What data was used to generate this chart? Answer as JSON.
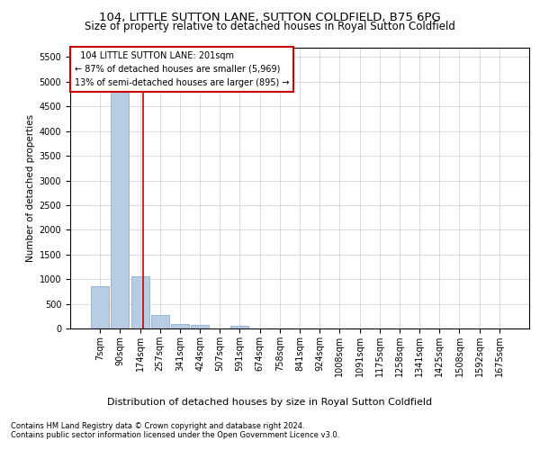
{
  "title": "104, LITTLE SUTTON LANE, SUTTON COLDFIELD, B75 6PG",
  "subtitle": "Size of property relative to detached houses in Royal Sutton Coldfield",
  "xlabel": "Distribution of detached houses by size in Royal Sutton Coldfield",
  "ylabel": "Number of detached properties",
  "footnote1": "Contains HM Land Registry data © Crown copyright and database right 2024.",
  "footnote2": "Contains public sector information licensed under the Open Government Licence v3.0.",
  "bins": [
    "7sqm",
    "90sqm",
    "174sqm",
    "257sqm",
    "341sqm",
    "424sqm",
    "507sqm",
    "591sqm",
    "674sqm",
    "758sqm",
    "841sqm",
    "924sqm",
    "1008sqm",
    "1091sqm",
    "1175sqm",
    "1258sqm",
    "1341sqm",
    "1425sqm",
    "1508sqm",
    "1592sqm",
    "1675sqm"
  ],
  "values": [
    850,
    5500,
    1050,
    270,
    90,
    70,
    0,
    55,
    0,
    0,
    0,
    0,
    0,
    0,
    0,
    0,
    0,
    0,
    0,
    0,
    0
  ],
  "bar_color": "#b8cce4",
  "bar_edge_color": "#7ba3c8",
  "red_line_x": 2.15,
  "annotation_text": "  104 LITTLE SUTTON LANE: 201sqm  \n← 87% of detached houses are smaller (5,969)\n13% of semi-detached houses are larger (895) →",
  "annotation_box_color": "#ffffff",
  "annotation_box_edge": "#cc0000",
  "ylim": [
    0,
    5700
  ],
  "yticks": [
    0,
    500,
    1000,
    1500,
    2000,
    2500,
    3000,
    3500,
    4000,
    4500,
    5000,
    5500
  ],
  "bg_color": "#ffffff",
  "grid_color": "#cccccc",
  "title_fontsize": 9.5,
  "subtitle_fontsize": 8.5,
  "ylabel_fontsize": 7.5,
  "xlabel_fontsize": 8,
  "tick_fontsize": 7,
  "annotation_fontsize": 7,
  "footnote_fontsize": 6
}
